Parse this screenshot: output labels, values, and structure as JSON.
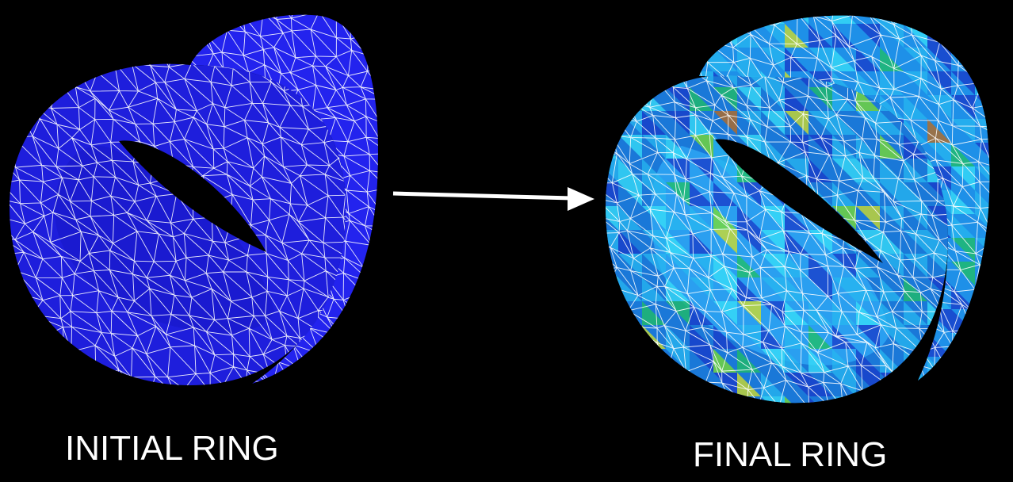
{
  "initial": {
    "caption": "INITIAL RING",
    "colors": {
      "front": "#1e1edc",
      "side": "#2323ee",
      "inner": "#1a1ad0",
      "mesh": "#ffffff"
    }
  },
  "final": {
    "caption": "FINAL RING",
    "colors": {
      "base": "#1a78d8",
      "side": "#1e90e8",
      "inner": "#2a9ff0",
      "mesh": "#ffffff",
      "patches": [
        "#1838c8",
        "#27b7f0",
        "#38e0f8",
        "#20c060",
        "#7ee02a",
        "#d8e020",
        "#c06a18"
      ]
    }
  },
  "arrow": {
    "color": "#ffffff"
  }
}
